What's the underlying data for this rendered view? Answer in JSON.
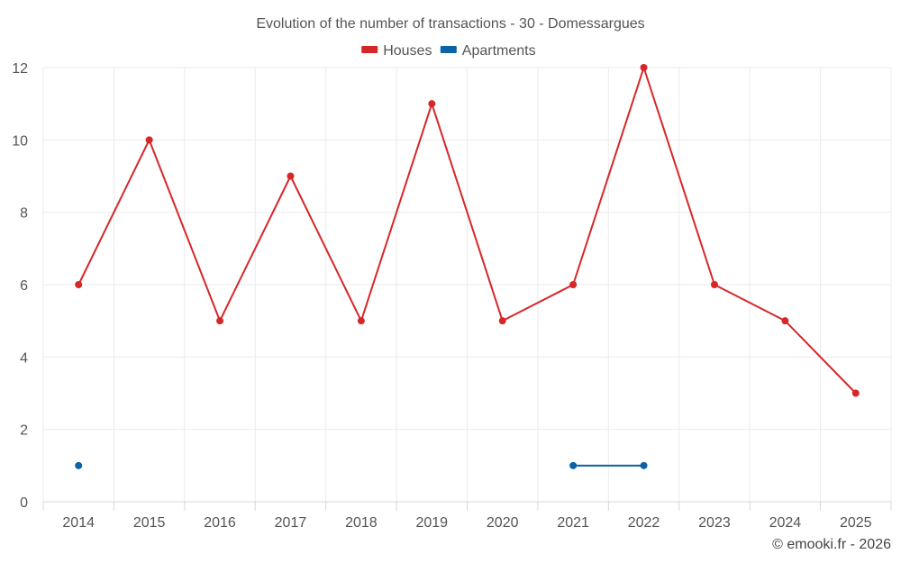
{
  "chart_data": {
    "type": "line",
    "title": "Evolution of the number of transactions - 30 - Domessargues",
    "xlabel": "",
    "ylabel": "",
    "categories": [
      "2014",
      "2015",
      "2016",
      "2017",
      "2018",
      "2019",
      "2020",
      "2021",
      "2022",
      "2023",
      "2024",
      "2025"
    ],
    "ylim": [
      0,
      12
    ],
    "yticks": [
      0,
      2,
      4,
      6,
      8,
      10,
      12
    ],
    "grid": true,
    "legend_position": "top-center",
    "series": [
      {
        "name": "Houses",
        "color": "#d62728",
        "values": [
          6,
          10,
          5,
          9,
          5,
          11,
          5,
          6,
          12,
          6,
          5,
          3
        ]
      },
      {
        "name": "Apartments",
        "color": "#0b62a4",
        "values": [
          1,
          null,
          null,
          null,
          null,
          null,
          null,
          1,
          1,
          null,
          null,
          null
        ]
      }
    ],
    "credit": "© emooki.fr - 2026"
  }
}
